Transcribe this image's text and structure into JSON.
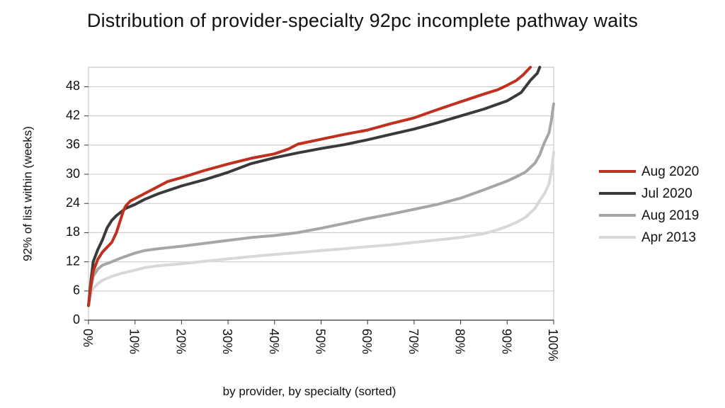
{
  "chart_data": {
    "type": "line",
    "title": "Distribution of provider-specialty 92pc incomplete pathway waits",
    "xlabel": "by provider, by specialty (sorted)",
    "ylabel": "92% of list within (weeks)",
    "xlim": [
      0,
      100
    ],
    "ylim": [
      0,
      52
    ],
    "x_ticks": [
      "0%",
      "10%",
      "20%",
      "30%",
      "40%",
      "50%",
      "60%",
      "70%",
      "80%",
      "90%",
      "100%"
    ],
    "y_ticks": [
      "0",
      "6",
      "12",
      "18",
      "24",
      "30",
      "36",
      "42",
      "48"
    ],
    "grid": "horizontal",
    "legend_position": "right",
    "series": [
      {
        "name": "Aug 2020",
        "color": "#c0301f",
        "x": [
          0,
          0.5,
          1,
          2,
          3,
          4,
          5,
          6,
          7,
          7.5,
          8,
          9,
          10,
          12,
          15,
          17,
          20,
          25,
          30,
          35,
          40,
          43,
          45,
          50,
          55,
          60,
          65,
          70,
          75,
          80,
          85,
          88,
          90,
          92,
          93.5,
          95
        ],
        "y": [
          3,
          7,
          10,
          12.5,
          14,
          15,
          16,
          18,
          21,
          22.5,
          23.5,
          24.5,
          25,
          26,
          27.5,
          28.5,
          29.3,
          30.8,
          32.1,
          33.3,
          34.2,
          35.2,
          36.2,
          37.2,
          38.2,
          39.1,
          40.4,
          41.6,
          43.3,
          44.9,
          46.5,
          47.4,
          48.3,
          49.3,
          50.5,
          52
        ]
      },
      {
        "name": "Jul 2020",
        "color": "#3a3a3a",
        "x": [
          0,
          0.5,
          1,
          2,
          3,
          4,
          5,
          6,
          8,
          10,
          12,
          15,
          20,
          25,
          30,
          35,
          40,
          45,
          50,
          55,
          60,
          65,
          70,
          75,
          80,
          85,
          90,
          93,
          95,
          96.5,
          97
        ],
        "y": [
          3,
          8,
          12,
          14.5,
          16.5,
          19,
          20.5,
          21.5,
          23,
          23.8,
          24.8,
          26,
          27.6,
          28.9,
          30.4,
          32.2,
          33.4,
          34.4,
          35.3,
          36.1,
          37.1,
          38.2,
          39.3,
          40.6,
          42.0,
          43.4,
          45.1,
          46.8,
          49.3,
          50.8,
          52
        ]
      },
      {
        "name": "Aug 2019",
        "color": "#a6a6a6",
        "x": [
          0,
          0.5,
          1,
          2,
          3,
          5,
          7,
          10,
          12,
          15,
          20,
          25,
          30,
          35,
          40,
          45,
          50,
          55,
          60,
          65,
          70,
          75,
          80,
          85,
          88,
          90,
          92,
          94,
          96,
          97,
          98,
          99,
          99.5,
          100
        ],
        "y": [
          3,
          6.5,
          9,
          10.5,
          11.3,
          12,
          12.8,
          13.8,
          14.3,
          14.7,
          15.2,
          15.8,
          16.4,
          17,
          17.4,
          18,
          18.9,
          19.9,
          20.9,
          21.8,
          22.8,
          23.8,
          25.1,
          26.8,
          27.9,
          28.6,
          29.5,
          30.5,
          32.3,
          34,
          36.5,
          38.5,
          41,
          44.5
        ]
      },
      {
        "name": "Apr 2013",
        "color": "#d8d8d8",
        "x": [
          0,
          0.5,
          1,
          2,
          3,
          5,
          7,
          10,
          12,
          15,
          20,
          25,
          30,
          35,
          40,
          45,
          50,
          55,
          60,
          65,
          70,
          75,
          80,
          85,
          88,
          90,
          92,
          94,
          96,
          97,
          98,
          99,
          99.5,
          100
        ],
        "y": [
          3,
          5.5,
          6.5,
          7.5,
          8.2,
          9,
          9.6,
          10.3,
          10.8,
          11.2,
          11.6,
          12.1,
          12.6,
          13.1,
          13.5,
          13.9,
          14.3,
          14.7,
          15.1,
          15.5,
          16,
          16.5,
          17,
          17.8,
          18.6,
          19.3,
          20.1,
          21.2,
          23,
          24.6,
          26,
          28,
          30.5,
          34.5
        ]
      }
    ]
  }
}
